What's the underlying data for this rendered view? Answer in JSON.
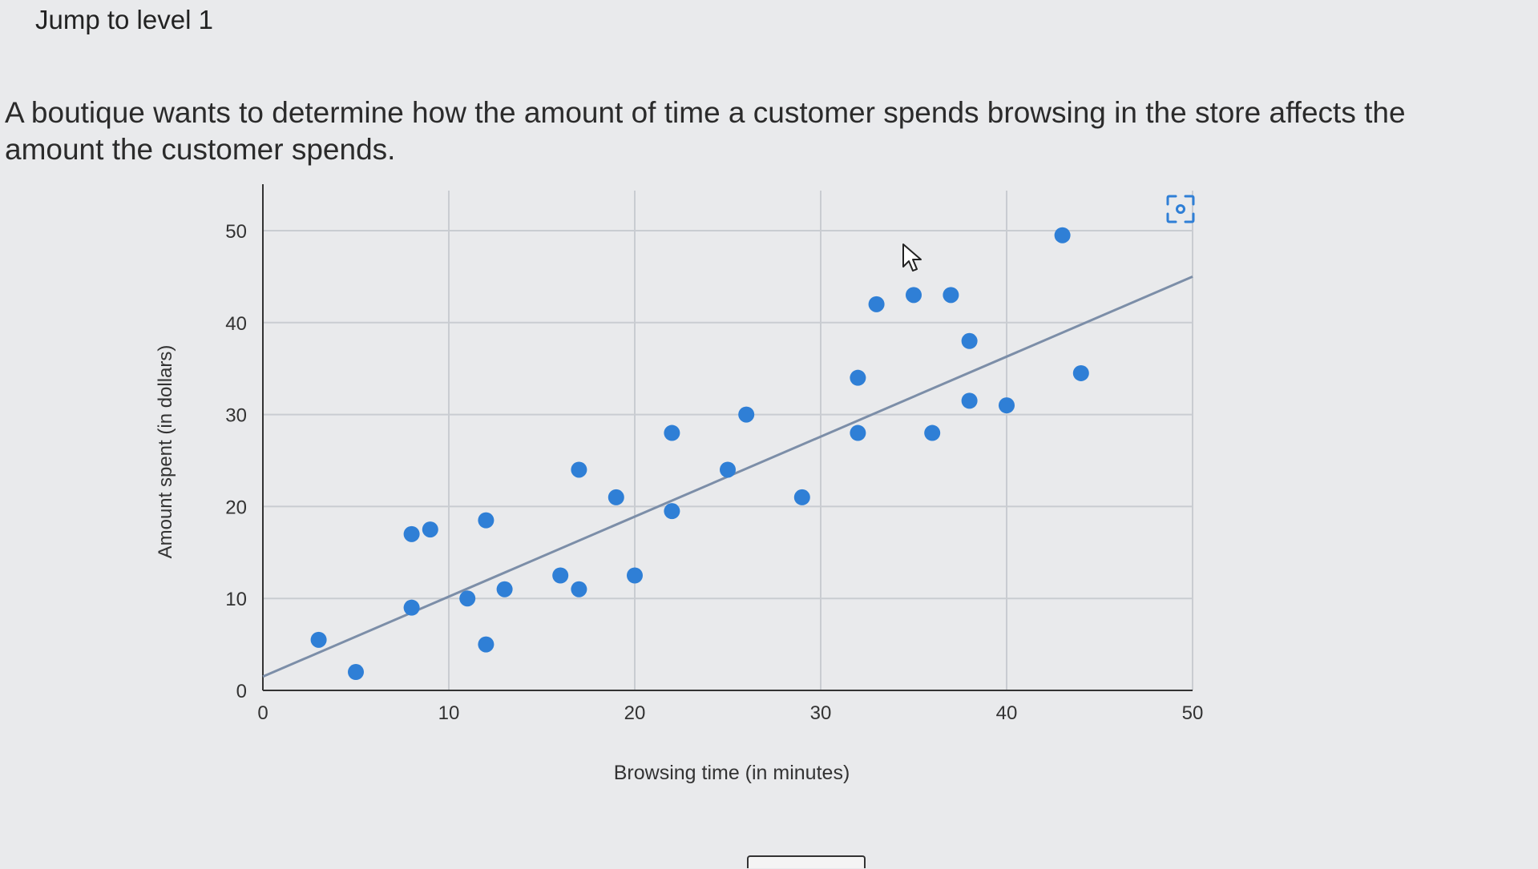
{
  "header": {
    "level_link": "Jump to level 1"
  },
  "question": {
    "text": "A boutique wants to determine how the amount of time a customer spends browsing in the store affects the amount the customer spends."
  },
  "icons": {
    "expand": "expand-chart-icon",
    "cursor": "mouse-cursor-icon"
  },
  "colors": {
    "point": "#2f7fd6",
    "trend": "#7c8ea8",
    "grid": "#c9ccd1",
    "axis": "#333333"
  },
  "chart_data": {
    "type": "scatter",
    "xlabel": "Browsing time (in minutes)",
    "ylabel": "Amount spent (in dollars)",
    "xlim": [
      0,
      50
    ],
    "ylim": [
      0,
      50
    ],
    "xticks": [
      0,
      10,
      20,
      30,
      40,
      50
    ],
    "yticks": [
      0,
      10,
      20,
      30,
      40,
      50
    ],
    "grid": true,
    "points": [
      {
        "x": 3,
        "y": 5.5
      },
      {
        "x": 5,
        "y": 2
      },
      {
        "x": 8,
        "y": 9
      },
      {
        "x": 8,
        "y": 17
      },
      {
        "x": 9,
        "y": 17.5
      },
      {
        "x": 11,
        "y": 10
      },
      {
        "x": 12,
        "y": 18.5
      },
      {
        "x": 12,
        "y": 5
      },
      {
        "x": 13,
        "y": 11
      },
      {
        "x": 16,
        "y": 12.5
      },
      {
        "x": 17,
        "y": 11
      },
      {
        "x": 17,
        "y": 24
      },
      {
        "x": 19,
        "y": 21
      },
      {
        "x": 20,
        "y": 12.5
      },
      {
        "x": 22,
        "y": 28
      },
      {
        "x": 22,
        "y": 19.5
      },
      {
        "x": 25,
        "y": 24
      },
      {
        "x": 26,
        "y": 30
      },
      {
        "x": 29,
        "y": 21
      },
      {
        "x": 32,
        "y": 34
      },
      {
        "x": 32,
        "y": 28
      },
      {
        "x": 33,
        "y": 42
      },
      {
        "x": 35,
        "y": 43
      },
      {
        "x": 36,
        "y": 28
      },
      {
        "x": 37,
        "y": 43
      },
      {
        "x": 38,
        "y": 38
      },
      {
        "x": 38,
        "y": 31.5
      },
      {
        "x": 40,
        "y": 31
      },
      {
        "x": 43,
        "y": 49.5
      },
      {
        "x": 44,
        "y": 34.5
      }
    ],
    "trend_line": {
      "x": [
        0,
        50
      ],
      "y": [
        1.5,
        45
      ]
    }
  }
}
